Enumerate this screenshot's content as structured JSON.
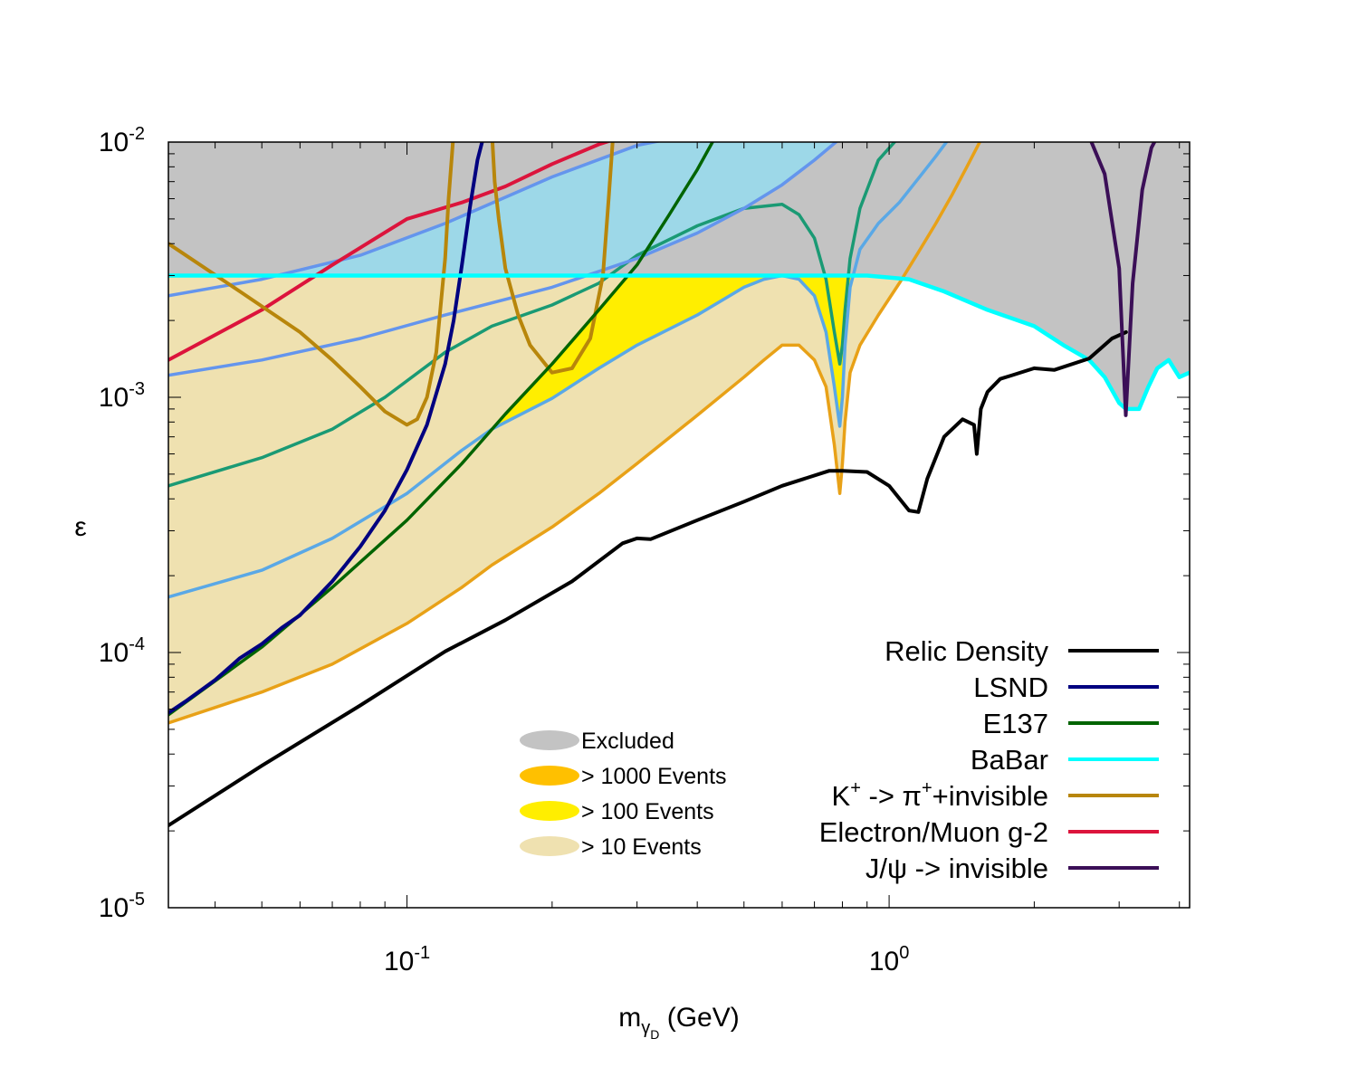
{
  "chart_data": {
    "type": "line",
    "xscale": "log",
    "yscale": "log",
    "xlim": [
      0.032,
      4.2
    ],
    "ylim": [
      1e-05,
      0.01
    ],
    "xlabel": {
      "main": "m",
      "sub": "γ",
      "subsub": "D",
      "unit": " (GeV)"
    },
    "ylabel": "ε",
    "xticks": [
      {
        "value": 0.1,
        "base": "10",
        "exp": "-1"
      },
      {
        "value": 1.0,
        "base": "10",
        "exp": "0"
      }
    ],
    "yticks": [
      {
        "value": 0.01,
        "base": "10",
        "exp": "-2"
      },
      {
        "value": 0.001,
        "base": "10",
        "exp": "-3"
      },
      {
        "value": 0.0001,
        "base": "10",
        "exp": "-4"
      },
      {
        "value": 1e-05,
        "base": "10",
        "exp": "-5"
      }
    ],
    "regions": [
      {
        "name": "Excluded",
        "label": "Excluded",
        "color": "#c3c3c3"
      },
      {
        "name": "events-1000",
        "label": "> 1000 Events",
        "color": "#ffc000"
      },
      {
        "name": "events-100",
        "label": "> 100 Events",
        "color": "#ffee00"
      },
      {
        "name": "events-10",
        "label": "> 10 Events",
        "color": "#efe1b0"
      }
    ],
    "babar_region_color": "#9dd8e8",
    "series": [
      {
        "name": "Relic Density",
        "color": "#000000",
        "width": 4,
        "legend": true,
        "x": [
          0.032,
          0.05,
          0.08,
          0.12,
          0.16,
          0.22,
          0.28,
          0.3,
          0.32,
          0.4,
          0.5,
          0.6,
          0.75,
          0.8,
          0.9,
          1.0,
          1.1,
          1.15,
          1.2,
          1.3,
          1.42,
          1.5,
          1.52,
          1.55,
          1.6,
          1.7,
          1.8,
          2.0,
          2.2,
          2.6,
          2.9,
          3.1
        ],
        "y": [
          2.1e-05,
          3.6e-05,
          6.2e-05,
          0.000101,
          0.000134,
          0.00019,
          0.000268,
          0.00028,
          0.000278,
          0.00033,
          0.00039,
          0.00045,
          0.000515,
          0.000515,
          0.00051,
          0.00045,
          0.00036,
          0.000355,
          0.00048,
          0.0007,
          0.00082,
          0.00078,
          0.0006,
          0.0009,
          0.00105,
          0.00118,
          0.00122,
          0.0013,
          0.00128,
          0.00142,
          0.0017,
          0.0018
        ]
      },
      {
        "name": "LSND",
        "color": "#000080",
        "width": 4,
        "legend": true,
        "x": [
          0.032,
          0.035,
          0.04,
          0.045,
          0.05,
          0.055,
          0.06,
          0.07,
          0.08,
          0.09,
          0.1,
          0.11,
          0.12,
          0.125,
          0.13,
          0.135,
          0.14,
          0.145
        ],
        "y": [
          5.8e-05,
          6.5e-05,
          7.8e-05,
          9.5e-05,
          0.000108,
          0.000125,
          0.00014,
          0.00019,
          0.00026,
          0.00036,
          0.00052,
          0.00078,
          0.00135,
          0.002,
          0.0033,
          0.0055,
          0.0085,
          0.011
        ]
      },
      {
        "name": "E137",
        "color": "#006400",
        "width": 3.5,
        "legend": true,
        "x": [
          0.032,
          0.05,
          0.07,
          0.1,
          0.13,
          0.16,
          0.2,
          0.25,
          0.3,
          0.35,
          0.4,
          0.44
        ],
        "y": [
          5.7e-05,
          0.000105,
          0.00018,
          0.00033,
          0.00055,
          0.00086,
          0.00135,
          0.0022,
          0.0033,
          0.0052,
          0.0078,
          0.0108
        ]
      },
      {
        "name": "BaBar",
        "color": "#00ffff",
        "width": 4.5,
        "legend": true,
        "x": [
          0.03,
          0.1,
          0.3,
          0.6,
          0.9,
          1.1,
          1.3,
          1.6,
          2.0,
          2.3,
          2.6,
          2.8,
          3.0,
          3.1,
          3.2,
          3.3,
          3.45,
          3.6,
          3.8,
          4.0,
          4.2
        ],
        "y": [
          0.003,
          0.003,
          0.003,
          0.003,
          0.003,
          0.0029,
          0.0026,
          0.0022,
          0.0019,
          0.0016,
          0.0014,
          0.0012,
          0.00095,
          0.0009,
          0.0009,
          0.0009,
          0.0011,
          0.0013,
          0.0014,
          0.0012,
          0.00125
        ]
      },
      {
        "name": "K+ -> π++invisible",
        "color": "#b8860b",
        "width": 4,
        "legend": true,
        "x": [
          0.032,
          0.045,
          0.06,
          0.07,
          0.08,
          0.09,
          0.1,
          0.105,
          0.11,
          0.115,
          0.12,
          0.122,
          0.124,
          0.125,
          null,
          0.15,
          0.152,
          0.155,
          0.16,
          0.17,
          0.18,
          0.2,
          0.22,
          0.24,
          0.255,
          0.262,
          0.266,
          0.268
        ],
        "y": [
          0.004,
          0.0026,
          0.0018,
          0.0014,
          0.0011,
          0.00088,
          0.00078,
          0.00082,
          0.001,
          0.0015,
          0.0035,
          0.006,
          0.009,
          0.011,
          null,
          0.011,
          0.007,
          0.005,
          0.0032,
          0.0021,
          0.0016,
          0.00125,
          0.0013,
          0.0017,
          0.003,
          0.006,
          0.009,
          0.011
        ]
      },
      {
        "name": "Electron/Muon g-2",
        "color": "#dc143c",
        "width": 4,
        "legend": true,
        "x": [
          0.032,
          0.05,
          0.07,
          0.1,
          0.13,
          0.16,
          0.2,
          0.25,
          0.28
        ],
        "y": [
          0.0014,
          0.0022,
          0.0033,
          0.005,
          0.0058,
          0.0067,
          0.0082,
          0.0098,
          0.0105
        ]
      },
      {
        "name": "J/ψ -> invisible",
        "color": "#3b0f57",
        "width": 4,
        "legend": true,
        "x": [
          2.6,
          2.8,
          3.0,
          3.097,
          3.2,
          3.35,
          3.5,
          3.6
        ],
        "y": [
          0.0105,
          0.0075,
          0.0032,
          0.00085,
          0.0028,
          0.0065,
          0.0095,
          0.0105
        ]
      },
      {
        "name": "g-2 band upper",
        "color": "#6495ed",
        "width": 3.5,
        "legend": false,
        "x": [
          0.032,
          0.05,
          0.08,
          0.12,
          0.2,
          0.3,
          0.37
        ],
        "y": [
          0.0025,
          0.0029,
          0.0036,
          0.0048,
          0.0073,
          0.0097,
          0.0105
        ]
      },
      {
        "name": "g-2 band lower",
        "color": "#6495ed",
        "width": 3.5,
        "legend": false,
        "x": [
          0.032,
          0.05,
          0.08,
          0.12,
          0.2,
          0.3,
          0.4,
          0.5,
          0.6,
          0.7,
          0.8
        ],
        "y": [
          0.00122,
          0.0014,
          0.0017,
          0.0021,
          0.0027,
          0.0035,
          0.0044,
          0.0055,
          0.0068,
          0.0085,
          0.0105
        ]
      },
      {
        "name": "Teal contour",
        "color": "#1a9a74",
        "width": 3.5,
        "legend": false,
        "x": [
          0.032,
          0.05,
          0.07,
          0.09,
          0.12,
          0.15,
          0.2,
          0.25,
          0.3,
          0.4,
          0.5,
          0.6,
          0.65,
          0.7,
          0.74,
          0.77,
          0.79,
          0.8,
          0.81,
          0.83,
          0.87,
          0.95,
          1.05,
          1.1
        ],
        "y": [
          0.00045,
          0.00058,
          0.00075,
          0.001,
          0.0015,
          0.0019,
          0.0023,
          0.0028,
          0.0036,
          0.0047,
          0.0055,
          0.0057,
          0.0052,
          0.0042,
          0.0029,
          0.0018,
          0.00135,
          0.0016,
          0.0022,
          0.0035,
          0.0055,
          0.0085,
          0.0105,
          0.011
        ]
      },
      {
        "name": "Light blue contour",
        "color": "#5aa8e6",
        "width": 3.5,
        "legend": false,
        "x": [
          0.032,
          0.05,
          0.07,
          0.1,
          0.13,
          0.15,
          0.2,
          0.25,
          0.3,
          0.4,
          0.5,
          0.55,
          0.6,
          0.65,
          0.7,
          0.74,
          0.77,
          0.79,
          0.8,
          0.81,
          0.83,
          0.87,
          0.95,
          1.05,
          1.15,
          1.25,
          1.32
        ],
        "y": [
          0.000165,
          0.00021,
          0.00028,
          0.00042,
          0.00062,
          0.00075,
          0.00099,
          0.0013,
          0.0016,
          0.0021,
          0.0027,
          0.0029,
          0.003,
          0.0029,
          0.0025,
          0.0018,
          0.0011,
          0.00077,
          0.001,
          0.0016,
          0.0027,
          0.0038,
          0.0048,
          0.0058,
          0.0072,
          0.0088,
          0.0101
        ]
      },
      {
        "name": "Orange contour",
        "color": "#e8a117",
        "width": 3.5,
        "legend": false,
        "x": [
          0.032,
          0.05,
          0.07,
          0.1,
          0.13,
          0.15,
          0.2,
          0.25,
          0.3,
          0.4,
          0.5,
          0.55,
          0.6,
          0.65,
          0.7,
          0.74,
          0.77,
          0.79,
          0.8,
          0.81,
          0.83,
          0.87,
          0.95,
          1.05,
          1.15,
          1.25,
          1.35,
          1.45,
          1.55
        ],
        "y": [
          5.3e-05,
          7e-05,
          9e-05,
          0.00013,
          0.00018,
          0.00022,
          0.00031,
          0.00042,
          0.00055,
          0.00085,
          0.0012,
          0.0014,
          0.0016,
          0.0016,
          0.0014,
          0.0011,
          0.00065,
          0.00042,
          0.00055,
          0.0008,
          0.00125,
          0.0016,
          0.0021,
          0.0028,
          0.0037,
          0.0048,
          0.0062,
          0.008,
          0.0102
        ]
      }
    ],
    "legend": {
      "position": "bottom-right"
    },
    "region_legend": {
      "position": "bottom-center"
    }
  }
}
